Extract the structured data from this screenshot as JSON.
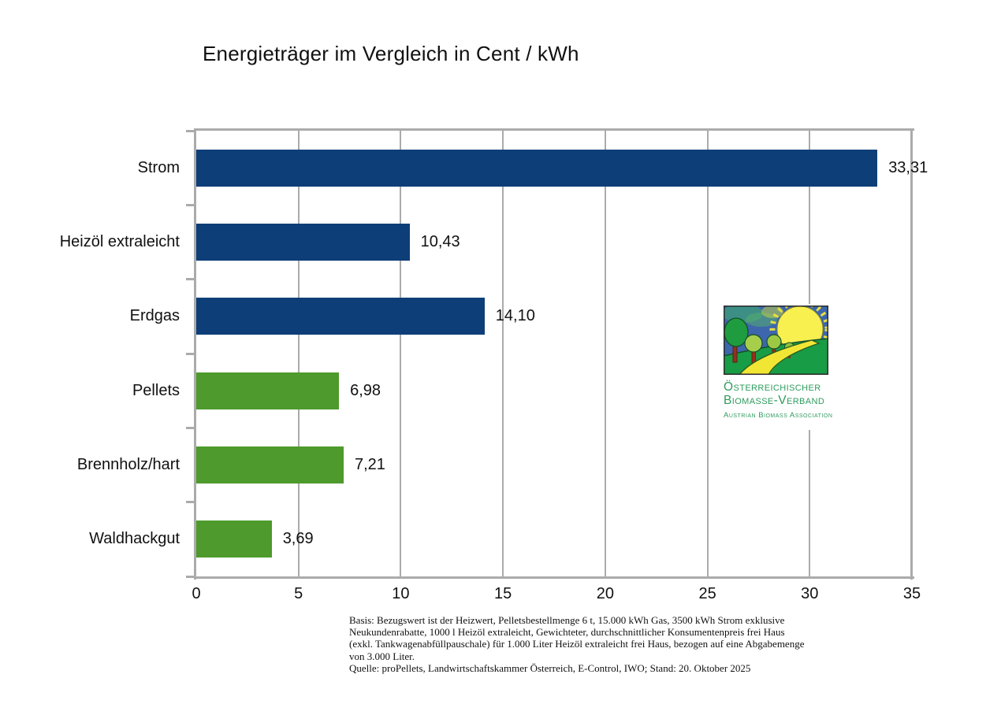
{
  "title": "Energieträger im Vergleich in Cent / kWh",
  "chart_data": {
    "type": "bar",
    "orientation": "horizontal",
    "title": "Energieträger im Vergleich in Cent / kWh",
    "categories": [
      "Strom",
      "Heizöl extraleicht",
      "Erdgas",
      "Pellets",
      "Brennholz/hart",
      "Waldhackgut"
    ],
    "values": [
      33.31,
      10.43,
      14.1,
      6.98,
      7.21,
      3.69
    ],
    "value_labels": [
      "33,31",
      "10,43",
      "14,10",
      "6,98",
      "7,21",
      "3,69"
    ],
    "bar_colors": [
      "#0E3E78",
      "#0E3E78",
      "#0E3E78",
      "#4E9A2C",
      "#4E9A2C",
      "#4E9A2C"
    ],
    "xlabel": "",
    "ylabel": "",
    "xlim": [
      0,
      35
    ],
    "x_ticks": [
      "0",
      "5",
      "10",
      "15",
      "20",
      "25",
      "30",
      "35"
    ],
    "grid": true,
    "gridline_color": "#ABABAB",
    "legend": "none"
  },
  "logo": {
    "org_line1": "Österreichischer",
    "org_line2": "Biomasse-Verband",
    "org_line3": "Austrian Biomass Association",
    "text_color": "#2E9C5E"
  },
  "footnote": {
    "lines": [
      "Basis: Bezugswert ist der Heizwert, Pelletsbestellmenge 6 t, 15.000 kWh Gas, 3500 kWh Strom exklusive",
      "Neukundenrabatte, 1000 l Heizöl extraleicht, Gewichteter, durchschnittlicher Konsumentenpreis frei Haus",
      "(exkl. Tankwagenabfüllpauschale) für 1.000 Liter Heizöl extraleicht frei Haus, bezogen auf eine Abgabemenge",
      "von 3.000 Liter.",
      "Quelle: proPellets, Landwirtschaftskammer Österreich, E-Control, IWO; Stand: 20. Oktober 2025"
    ]
  }
}
